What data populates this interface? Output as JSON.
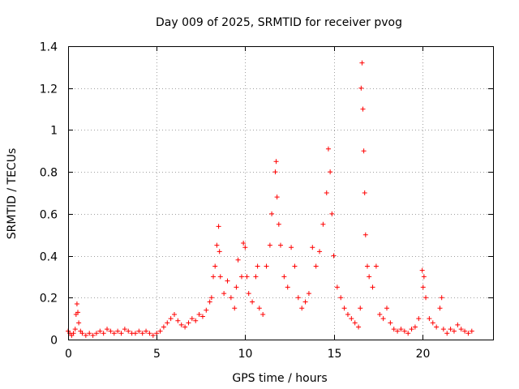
{
  "chart_data": {
    "type": "scatter",
    "title": "Day 009 of 2025, SRMTID for receiver pvog",
    "xlabel": "GPS time / hours",
    "ylabel": "SRMTID / TECUs",
    "xlim": [
      0,
      24
    ],
    "ylim": [
      0,
      1.4
    ],
    "xticks": [
      0,
      5,
      10,
      15,
      20
    ],
    "xtick_labels": [
      "0",
      "5",
      "10",
      "15",
      "20"
    ],
    "yticks": [
      0,
      0.2,
      0.4,
      0.6,
      0.8,
      1.0,
      1.2,
      1.4
    ],
    "ytick_labels": [
      "0",
      "0.2",
      "0.4",
      "0.6",
      "0.8",
      "1",
      "1.2",
      "1.4"
    ],
    "grid": true,
    "marker": "+",
    "color": "#ff0000",
    "series": [
      {
        "name": "SRMTID",
        "points": [
          [
            0.0,
            0.04
          ],
          [
            0.1,
            0.03
          ],
          [
            0.2,
            0.02
          ],
          [
            0.3,
            0.03
          ],
          [
            0.4,
            0.05
          ],
          [
            0.45,
            0.12
          ],
          [
            0.5,
            0.17
          ],
          [
            0.55,
            0.13
          ],
          [
            0.6,
            0.08
          ],
          [
            0.7,
            0.04
          ],
          [
            0.8,
            0.03
          ],
          [
            1.0,
            0.02
          ],
          [
            1.2,
            0.03
          ],
          [
            1.4,
            0.02
          ],
          [
            1.6,
            0.03
          ],
          [
            1.8,
            0.04
          ],
          [
            2.0,
            0.03
          ],
          [
            2.2,
            0.05
          ],
          [
            2.4,
            0.04
          ],
          [
            2.6,
            0.03
          ],
          [
            2.8,
            0.04
          ],
          [
            3.0,
            0.03
          ],
          [
            3.2,
            0.05
          ],
          [
            3.4,
            0.04
          ],
          [
            3.6,
            0.03
          ],
          [
            3.8,
            0.03
          ],
          [
            4.0,
            0.04
          ],
          [
            4.2,
            0.03
          ],
          [
            4.4,
            0.04
          ],
          [
            4.6,
            0.03
          ],
          [
            4.8,
            0.02
          ],
          [
            5.0,
            0.03
          ],
          [
            5.2,
            0.04
          ],
          [
            5.4,
            0.06
          ],
          [
            5.6,
            0.08
          ],
          [
            5.8,
            0.1
          ],
          [
            6.0,
            0.12
          ],
          [
            6.2,
            0.09
          ],
          [
            6.4,
            0.07
          ],
          [
            6.6,
            0.06
          ],
          [
            6.8,
            0.08
          ],
          [
            7.0,
            0.1
          ],
          [
            7.2,
            0.09
          ],
          [
            7.4,
            0.12
          ],
          [
            7.6,
            0.11
          ],
          [
            7.8,
            0.14
          ],
          [
            8.0,
            0.18
          ],
          [
            8.1,
            0.2
          ],
          [
            8.2,
            0.3
          ],
          [
            8.3,
            0.35
          ],
          [
            8.4,
            0.45
          ],
          [
            8.5,
            0.54
          ],
          [
            8.55,
            0.42
          ],
          [
            8.6,
            0.3
          ],
          [
            8.8,
            0.22
          ],
          [
            9.0,
            0.28
          ],
          [
            9.2,
            0.2
          ],
          [
            9.4,
            0.15
          ],
          [
            9.5,
            0.25
          ],
          [
            9.6,
            0.38
          ],
          [
            9.8,
            0.3
          ],
          [
            9.9,
            0.46
          ],
          [
            10.0,
            0.44
          ],
          [
            10.1,
            0.3
          ],
          [
            10.2,
            0.22
          ],
          [
            10.4,
            0.18
          ],
          [
            10.6,
            0.3
          ],
          [
            10.7,
            0.35
          ],
          [
            10.8,
            0.15
          ],
          [
            11.0,
            0.12
          ],
          [
            11.2,
            0.35
          ],
          [
            11.4,
            0.45
          ],
          [
            11.5,
            0.6
          ],
          [
            11.7,
            0.8
          ],
          [
            11.75,
            0.85
          ],
          [
            11.8,
            0.68
          ],
          [
            11.9,
            0.55
          ],
          [
            12.0,
            0.45
          ],
          [
            12.2,
            0.3
          ],
          [
            12.4,
            0.25
          ],
          [
            12.6,
            0.44
          ],
          [
            12.8,
            0.35
          ],
          [
            13.0,
            0.2
          ],
          [
            13.2,
            0.15
          ],
          [
            13.4,
            0.18
          ],
          [
            13.6,
            0.22
          ],
          [
            13.8,
            0.44
          ],
          [
            14.0,
            0.35
          ],
          [
            14.2,
            0.42
          ],
          [
            14.4,
            0.55
          ],
          [
            14.6,
            0.7
          ],
          [
            14.7,
            0.91
          ],
          [
            14.8,
            0.8
          ],
          [
            14.9,
            0.6
          ],
          [
            15.0,
            0.4
          ],
          [
            15.2,
            0.25
          ],
          [
            15.4,
            0.2
          ],
          [
            15.6,
            0.15
          ],
          [
            15.8,
            0.12
          ],
          [
            16.0,
            0.1
          ],
          [
            16.2,
            0.08
          ],
          [
            16.4,
            0.06
          ],
          [
            16.5,
            0.15
          ],
          [
            16.55,
            1.2
          ],
          [
            16.6,
            1.32
          ],
          [
            16.65,
            1.1
          ],
          [
            16.7,
            0.9
          ],
          [
            16.75,
            0.7
          ],
          [
            16.8,
            0.5
          ],
          [
            16.9,
            0.35
          ],
          [
            17.0,
            0.3
          ],
          [
            17.2,
            0.25
          ],
          [
            17.4,
            0.35
          ],
          [
            17.6,
            0.12
          ],
          [
            17.8,
            0.1
          ],
          [
            18.0,
            0.15
          ],
          [
            18.2,
            0.08
          ],
          [
            18.4,
            0.05
          ],
          [
            18.6,
            0.04
          ],
          [
            18.8,
            0.05
          ],
          [
            19.0,
            0.04
          ],
          [
            19.2,
            0.03
          ],
          [
            19.4,
            0.05
          ],
          [
            19.6,
            0.06
          ],
          [
            19.8,
            0.1
          ],
          [
            20.0,
            0.33
          ],
          [
            20.05,
            0.25
          ],
          [
            20.1,
            0.3
          ],
          [
            20.2,
            0.2
          ],
          [
            20.4,
            0.1
          ],
          [
            20.6,
            0.08
          ],
          [
            20.8,
            0.06
          ],
          [
            21.0,
            0.15
          ],
          [
            21.1,
            0.2
          ],
          [
            21.2,
            0.05
          ],
          [
            21.4,
            0.03
          ],
          [
            21.6,
            0.05
          ],
          [
            21.8,
            0.04
          ],
          [
            22.0,
            0.07
          ],
          [
            22.2,
            0.05
          ],
          [
            22.4,
            0.04
          ],
          [
            22.6,
            0.03
          ],
          [
            22.8,
            0.04
          ]
        ]
      }
    ]
  }
}
